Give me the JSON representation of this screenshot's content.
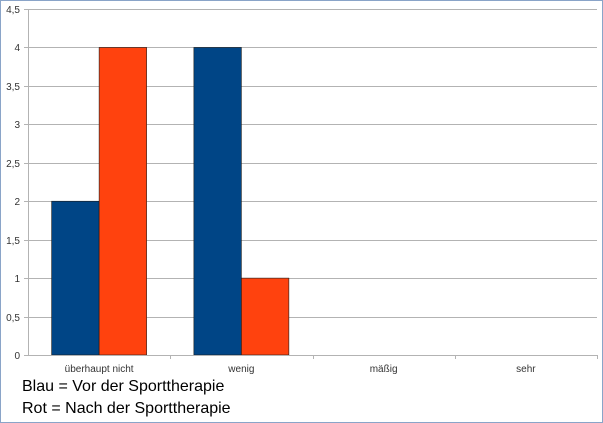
{
  "chart_data": {
    "type": "bar",
    "categories": [
      "überhaupt nicht",
      "wenig",
      "mäßig",
      "sehr"
    ],
    "series": [
      {
        "values": [
          2,
          4,
          0,
          0
        ],
        "color": "#004586"
      },
      {
        "values": [
          4,
          1,
          0,
          0
        ],
        "color": "#ff420e"
      }
    ],
    "ylim": [
      0,
      4.5
    ],
    "yticks": [
      "0",
      "0,5",
      "1",
      "1,5",
      "2",
      "2,5",
      "3",
      "3,5",
      "4",
      "4,5"
    ],
    "grid": true,
    "gridColor": "#b3b3b3"
  },
  "legend_text": {
    "line1": "Blau = Vor der Sporttherapie",
    "line2": "Rot = Nach der Sporttherapie"
  }
}
